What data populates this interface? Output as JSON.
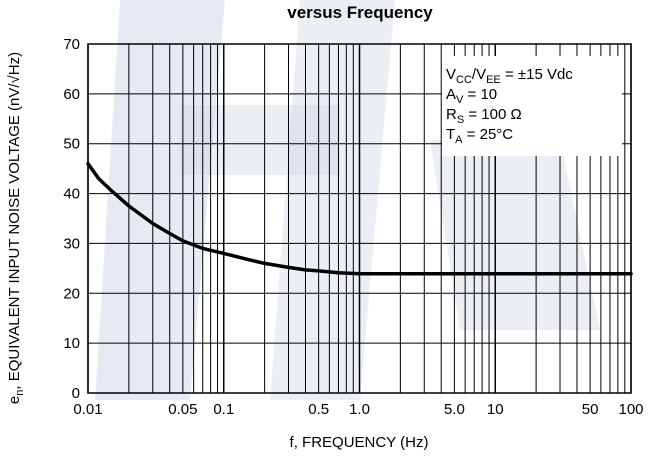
{
  "chart_data": {
    "type": "line",
    "title": "versus Frequency",
    "xlabel": "f, FREQUENCY (Hz)",
    "ylabel": {
      "symbol": "e",
      "symbol_sub": "n",
      "text": ", EQUIVALENT INPUT NOISE VOLTAGE (nV/√Hz)"
    },
    "x_scale": "log",
    "xlim": [
      0.01,
      100
    ],
    "ylim": [
      0,
      70
    ],
    "x_tick_values": [
      0.01,
      0.05,
      0.1,
      0.5,
      1.0,
      5.0,
      10,
      50,
      100
    ],
    "x_tick_labels": [
      "0.01",
      "0.05",
      "0.1",
      "0.5",
      "1.0",
      "5.0",
      "10",
      "50",
      "100"
    ],
    "y_tick_values": [
      0,
      10,
      20,
      30,
      40,
      50,
      60,
      70
    ],
    "y_tick_labels": [
      "0",
      "10",
      "20",
      "30",
      "40",
      "50",
      "60",
      "70"
    ],
    "grid": true,
    "series": [
      {
        "x": [
          0.01,
          0.012,
          0.015,
          0.02,
          0.03,
          0.04,
          0.05,
          0.07,
          0.1,
          0.15,
          0.2,
          0.3,
          0.4,
          0.5,
          0.7,
          1.0,
          2.0,
          5.0,
          10,
          20,
          50,
          100
        ],
        "y": [
          46,
          43,
          40.5,
          37.5,
          34,
          32,
          30.5,
          29,
          28,
          26.8,
          26,
          25.2,
          24.7,
          24.5,
          24.1,
          23.9,
          23.9,
          23.9,
          23.9,
          23.9,
          23.9,
          23.9
        ]
      }
    ],
    "conditions": [
      {
        "main": "V",
        "sub": "CC",
        "main2": "/V",
        "sub2": "EE",
        "rest": " = ±15 Vdc"
      },
      {
        "main": "A",
        "sub": "V",
        "main2": "",
        "sub2": "",
        "rest": " = 10"
      },
      {
        "main": "R",
        "sub": "S",
        "main2": "",
        "sub2": "",
        "rest": " = 100 Ω"
      },
      {
        "main": "T",
        "sub": "A",
        "main2": "",
        "sub2": "",
        "rest": " = 25°C"
      }
    ],
    "colors": {
      "line": "#000000",
      "grid": "#000000",
      "background": "#ffffff",
      "watermark": "#c7d2df"
    }
  }
}
